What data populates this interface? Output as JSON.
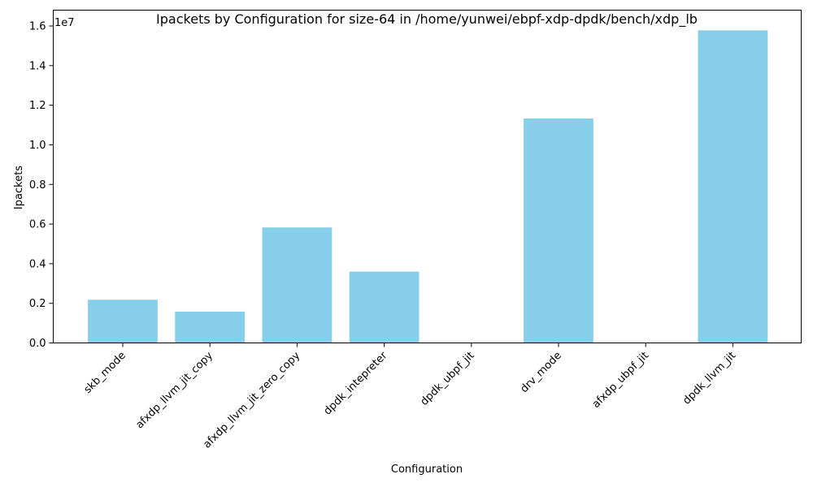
{
  "chart_data": {
    "type": "bar",
    "title": "Ipackets by Configuration for size-64 in /home/yunwei/ebpf-xdp-dpdk/bench/xdp_lb",
    "xlabel": "Configuration",
    "ylabel": "Ipackets",
    "y_offset_label": "1e7",
    "categories": [
      "skb_mode",
      "afxdp_llvm_jit_copy",
      "afxdp_llvm_jit_zero_copy",
      "dpdk_intepreter",
      "dpdk_ubpf_jit",
      "drv_mode",
      "afxdp_ubpf_jit",
      "dpdk_llvm_jit"
    ],
    "values": [
      2180000,
      1580000,
      5830000,
      3600000,
      0,
      11330000,
      0,
      15780000
    ],
    "ylim": [
      0,
      16800000
    ],
    "yticks": [
      0,
      2000000,
      4000000,
      6000000,
      8000000,
      10000000,
      12000000,
      14000000,
      16000000
    ],
    "ytick_labels": [
      "0.0",
      "0.2",
      "0.4",
      "0.6",
      "0.8",
      "1.0",
      "1.2",
      "1.4",
      "1.6"
    ],
    "bar_color": "#87ceeb",
    "grid": false,
    "legend": "none"
  }
}
